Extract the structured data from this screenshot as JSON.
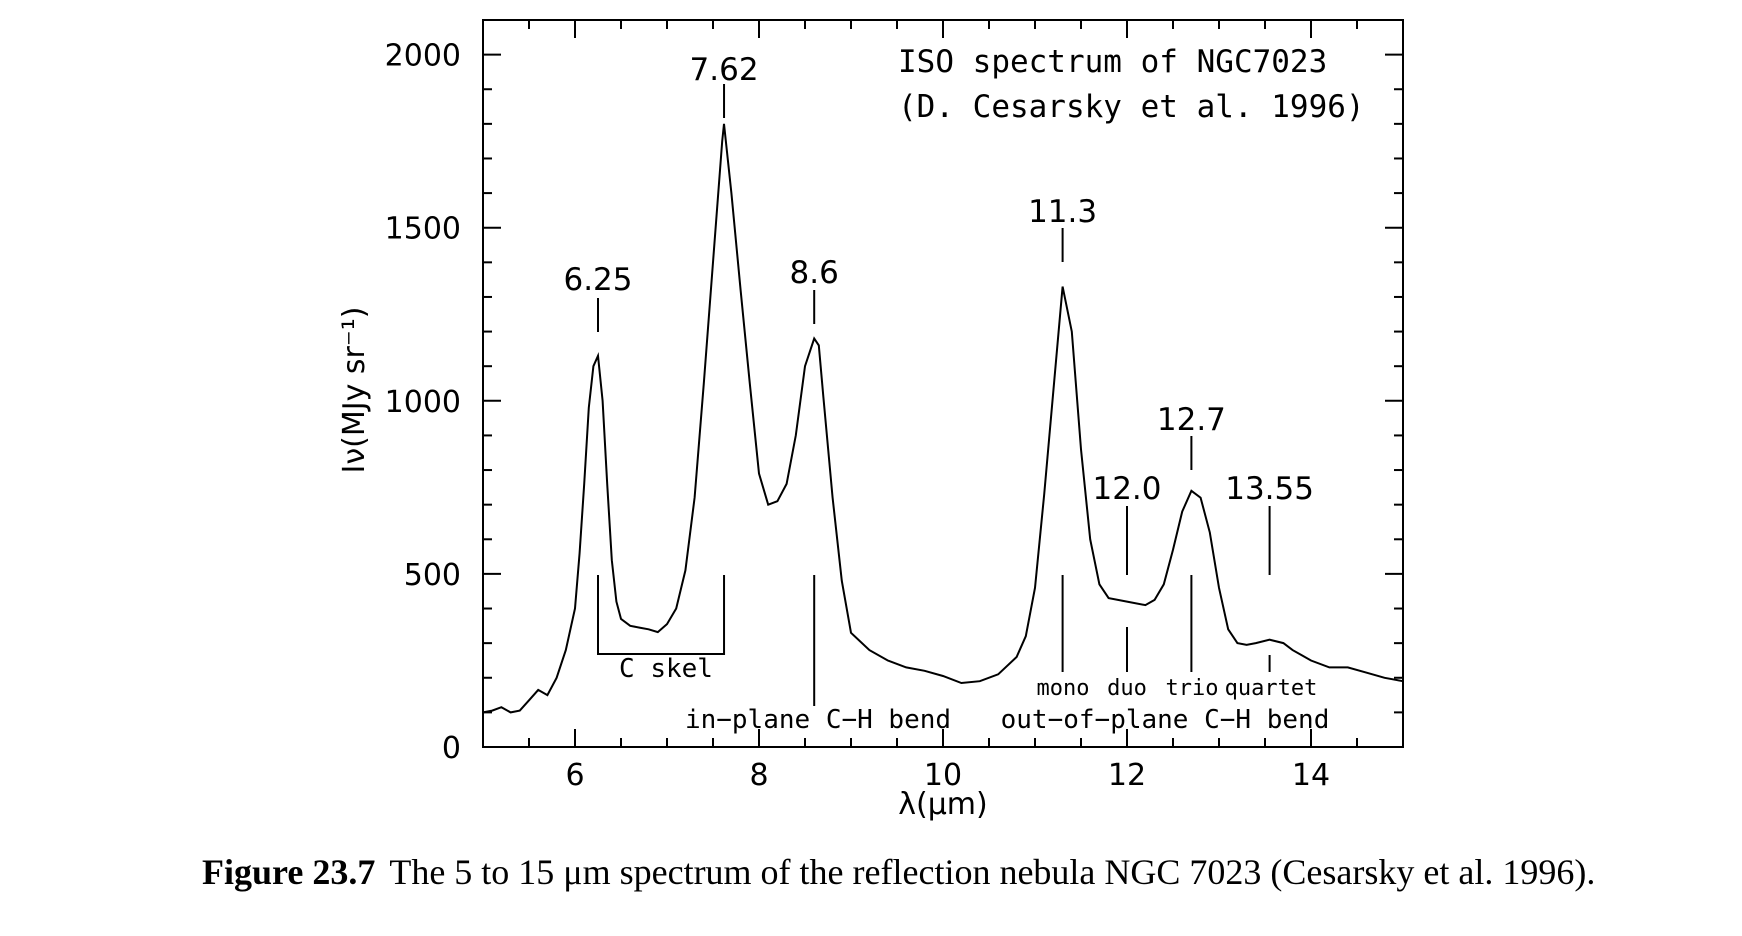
{
  "caption": {
    "label": "Figure 23.7",
    "text": "The 5 to 15 μm spectrum of the reflection nebula NGC 7023 (Cesarsky et al. 1996)."
  },
  "chart_data": {
    "type": "line",
    "title": "ISO spectrum of NGC7023",
    "subtitle": "(D. Cesarsky et al. 1996)",
    "xlabel": "λ(μm)",
    "ylabel": "Iν(MJy sr⁻¹)",
    "xlim": [
      5,
      15
    ],
    "ylim": [
      0,
      2100
    ],
    "xticks": [
      6,
      8,
      10,
      12,
      14
    ],
    "yticks": [
      0,
      500,
      1000,
      1500,
      2000
    ],
    "grid": false,
    "series": [
      {
        "x": [
          5.0,
          5.1,
          5.2,
          5.3,
          5.4,
          5.5,
          5.6,
          5.7,
          5.8,
          5.9,
          6.0,
          6.05,
          6.1,
          6.15,
          6.2,
          6.25,
          6.3,
          6.35,
          6.4,
          6.45,
          6.5,
          6.6,
          6.7,
          6.8,
          6.9,
          7.0,
          7.1,
          7.2,
          7.3,
          7.4,
          7.5,
          7.6,
          7.62,
          7.7,
          7.8,
          7.9,
          8.0,
          8.1,
          8.2,
          8.3,
          8.4,
          8.5,
          8.6,
          8.65,
          8.7,
          8.8,
          8.9,
          9.0,
          9.2,
          9.4,
          9.6,
          9.8,
          10.0,
          10.2,
          10.4,
          10.6,
          10.8,
          10.9,
          11.0,
          11.1,
          11.2,
          11.3,
          11.4,
          11.5,
          11.6,
          11.7,
          11.8,
          12.0,
          12.2,
          12.3,
          12.4,
          12.5,
          12.6,
          12.7,
          12.8,
          12.9,
          13.0,
          13.1,
          13.2,
          13.3,
          13.4,
          13.55,
          13.7,
          13.8,
          13.9,
          14.0,
          14.2,
          14.4,
          14.6,
          14.8,
          15.0
        ],
        "y": [
          100,
          105,
          115,
          100,
          105,
          135,
          165,
          150,
          200,
          280,
          400,
          560,
          760,
          980,
          1100,
          1130,
          1000,
          760,
          540,
          420,
          370,
          350,
          345,
          340,
          332,
          355,
          400,
          510,
          720,
          1050,
          1400,
          1750,
          1800,
          1600,
          1320,
          1050,
          790,
          700,
          710,
          760,
          900,
          1100,
          1180,
          1160,
          1010,
          720,
          480,
          330,
          280,
          250,
          230,
          220,
          205,
          185,
          190,
          210,
          260,
          320,
          460,
          730,
          1030,
          1330,
          1200,
          860,
          600,
          470,
          430,
          420,
          410,
          425,
          470,
          570,
          680,
          740,
          720,
          620,
          460,
          340,
          300,
          295,
          300,
          310,
          300,
          280,
          265,
          250,
          230,
          230,
          215,
          200,
          190
        ]
      }
    ],
    "peaks": [
      {
        "label": "6.25",
        "x": 6.25
      },
      {
        "label": "7.62",
        "x": 7.62
      },
      {
        "label": "8.6",
        "x": 8.6
      },
      {
        "label": "11.3",
        "x": 11.3
      },
      {
        "label": "12.0",
        "x": 12.0
      },
      {
        "label": "12.7",
        "x": 12.7
      },
      {
        "label": "13.55",
        "x": 13.55
      }
    ],
    "annotations": {
      "c_skel": "C skel",
      "in_plane": "in−plane C−H bend",
      "out_of_plane": "out−of−plane C−H bend",
      "mono": "mono",
      "duo": "duo",
      "trio": "trio",
      "quartet": "quartet"
    }
  }
}
